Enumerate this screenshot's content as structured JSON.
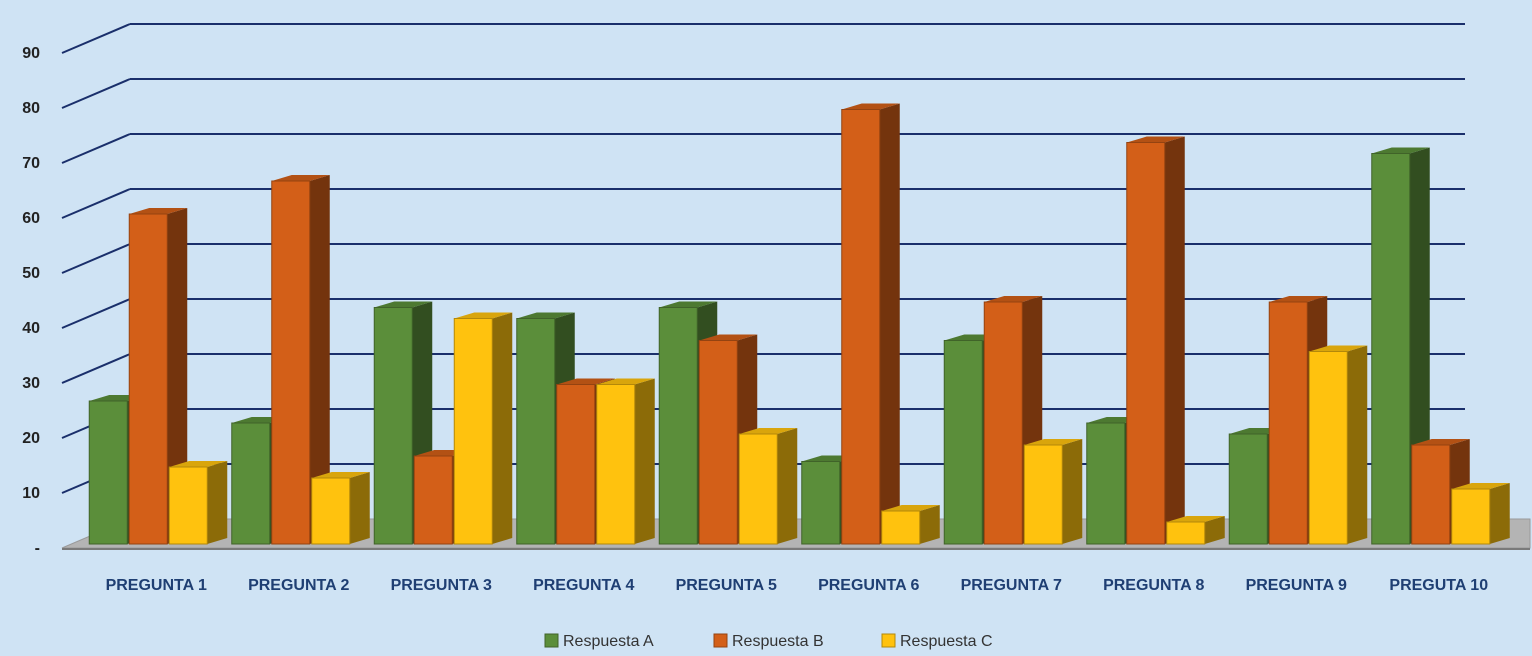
{
  "colors": {
    "background": "#cfe3f4",
    "gridline": "#1a2f6b",
    "floor": "#9a9a9a"
  },
  "chart_data": {
    "type": "bar",
    "categories": [
      "PREGUNTA 1",
      "PREGUNTA 2",
      "PREGUNTA 3",
      "PREGUNTA 4",
      "PREGUNTA 5",
      "PREGUNTA 6",
      "PREGUNTA 7",
      "PREGUNTA 8",
      "PREGUNTA 9",
      "PREGUTA 10"
    ],
    "series": [
      {
        "name": "Respuesta A",
        "color": "#5b8e3a",
        "values": [
          26,
          22,
          43,
          41,
          43,
          15,
          37,
          22,
          20,
          71
        ]
      },
      {
        "name": "Respuesta B",
        "color": "#d35f18",
        "values": [
          60,
          66,
          16,
          29,
          37,
          79,
          44,
          73,
          44,
          18
        ]
      },
      {
        "name": "Respuesta C",
        "color": "#ffc20e",
        "values": [
          14,
          12,
          41,
          29,
          20,
          6,
          18,
          4,
          35,
          10
        ]
      }
    ],
    "yticks": [
      "-",
      "10",
      "20",
      "30",
      "40",
      "50",
      "60",
      "70",
      "80",
      "90"
    ],
    "ylim": [
      0,
      90
    ],
    "grid": true,
    "legend": "bottom"
  }
}
